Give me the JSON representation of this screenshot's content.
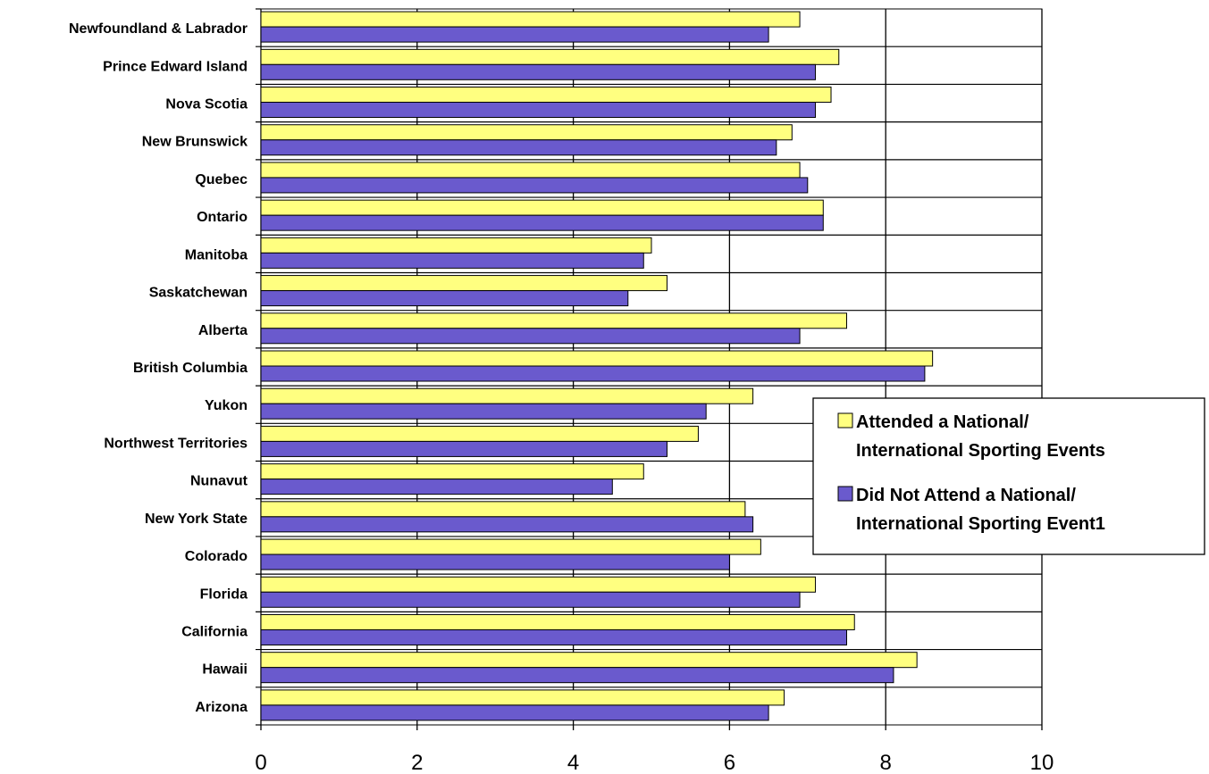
{
  "chart_data": {
    "type": "bar",
    "orientation": "horizontal",
    "categories": [
      "Newfoundland & Labrador",
      "Prince Edward Island",
      "Nova Scotia",
      "New Brunswick",
      "Quebec",
      "Ontario",
      "Manitoba",
      "Saskatchewan",
      "Alberta",
      "British Columbia",
      "Yukon",
      "Northwest Territories",
      "Nunavut",
      "New York State",
      "Colorado",
      "Florida",
      "California",
      "Hawaii",
      "Arizona"
    ],
    "series": [
      {
        "name": "Attended a National/ International Sporting Events",
        "name_lines": [
          "Attended a National/",
          "International Sporting Events"
        ],
        "color": "#FFFF80",
        "values": [
          6.9,
          7.4,
          7.3,
          6.8,
          6.9,
          7.2,
          5.0,
          5.2,
          7.5,
          8.6,
          6.3,
          5.6,
          4.9,
          6.2,
          6.4,
          7.1,
          7.6,
          8.4,
          6.7
        ]
      },
      {
        "name": "Did Not Attend a National/ International Sporting Event1",
        "name_lines": [
          "Did Not Attend a National/",
          "International Sporting Event1"
        ],
        "color": "#6A5ACD",
        "values": [
          6.5,
          7.1,
          7.1,
          6.6,
          7.0,
          7.2,
          4.9,
          4.7,
          6.9,
          8.5,
          5.7,
          5.2,
          4.5,
          6.3,
          6.0,
          6.9,
          7.5,
          8.1,
          6.5
        ]
      }
    ],
    "xlim": [
      0,
      10
    ],
    "xticks": [
      "0",
      "2",
      "4",
      "6",
      "8",
      "10"
    ],
    "title": "",
    "xlabel": "",
    "ylabel": "",
    "grid": "vertical",
    "legend_position": "right"
  }
}
